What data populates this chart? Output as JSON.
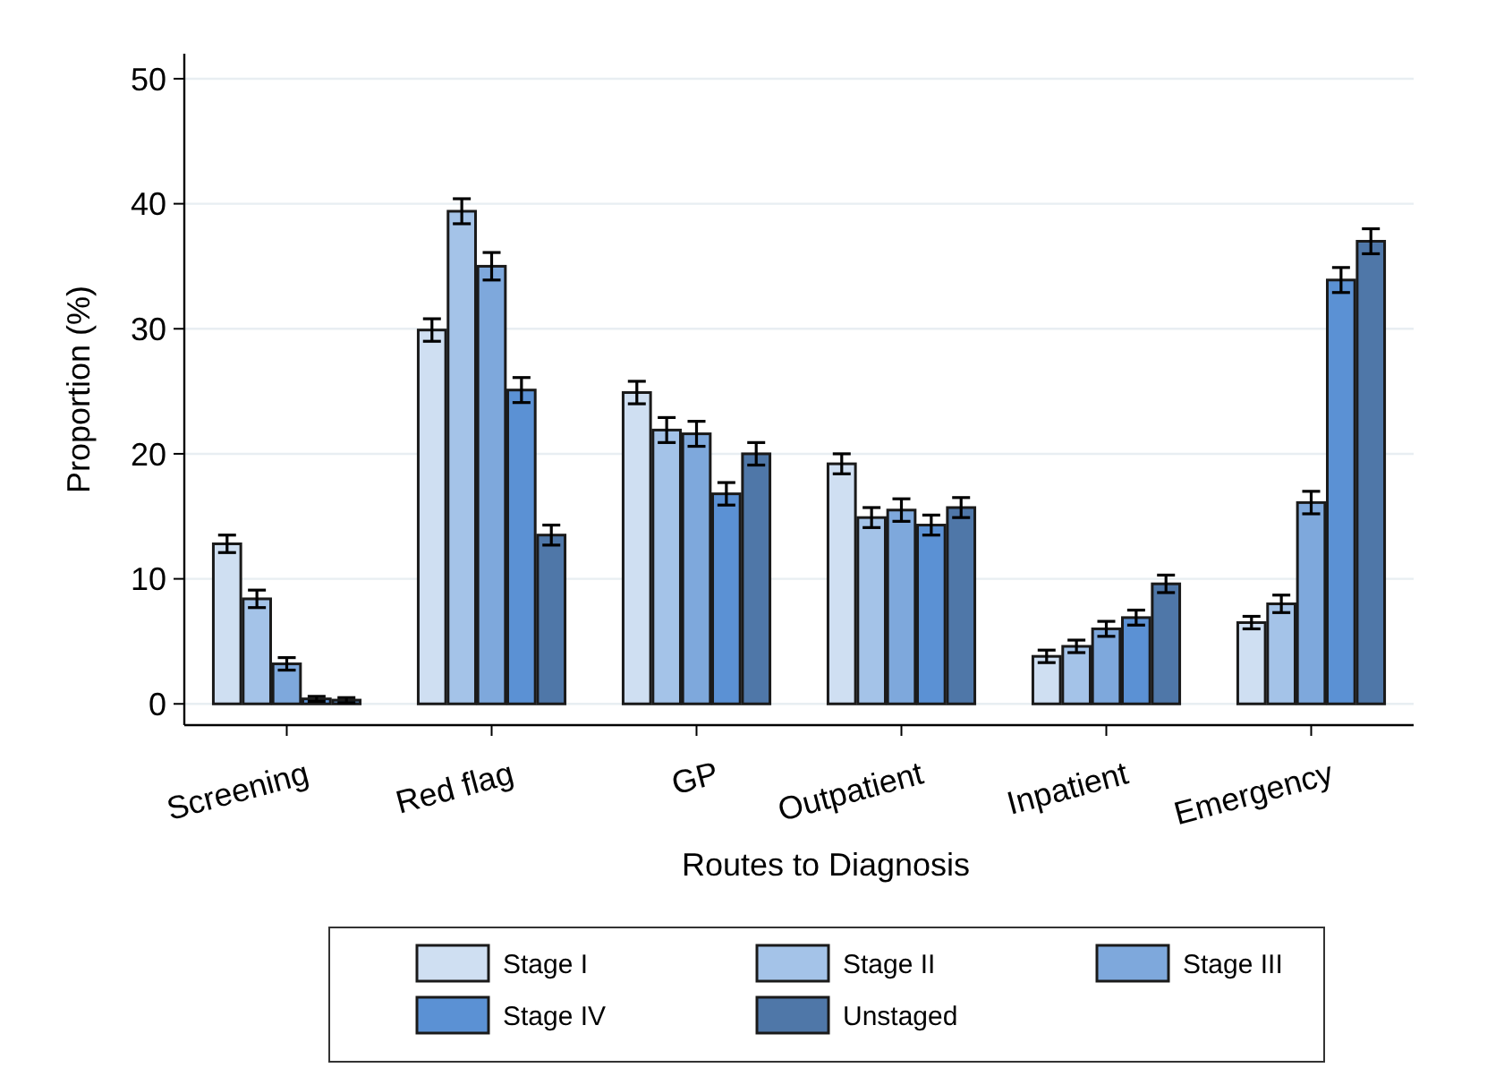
{
  "chart_data": {
    "type": "bar",
    "xlabel": "Routes to Diagnosis",
    "ylabel": "Proportion (%)",
    "categories": [
      "Screening",
      "Red flag",
      "GP",
      "Outpatient",
      "Inpatient",
      "Emergency"
    ],
    "series": [
      {
        "name": "Stage I",
        "color": "#cfdff2",
        "values": [
          12.8,
          29.9,
          24.9,
          19.2,
          3.8,
          6.5
        ],
        "errors": [
          0.7,
          0.9,
          0.9,
          0.8,
          0.5,
          0.5
        ]
      },
      {
        "name": "Stage II",
        "color": "#a4c3e8",
        "values": [
          8.4,
          39.4,
          21.9,
          14.9,
          4.6,
          8.0
        ],
        "errors": [
          0.7,
          1.0,
          1.0,
          0.8,
          0.5,
          0.7
        ]
      },
      {
        "name": "Stage III",
        "color": "#7ea8dc",
        "values": [
          3.2,
          35.0,
          21.6,
          15.5,
          6.0,
          16.1
        ],
        "errors": [
          0.5,
          1.1,
          1.0,
          0.9,
          0.6,
          0.9
        ]
      },
      {
        "name": "Stage IV",
        "color": "#5b91d4",
        "values": [
          0.4,
          25.1,
          16.8,
          14.3,
          6.9,
          33.9
        ],
        "errors": [
          0.2,
          1.0,
          0.9,
          0.8,
          0.6,
          1.0
        ]
      },
      {
        "name": "Unstaged",
        "color": "#4f77a8",
        "values": [
          0.3,
          13.5,
          20.0,
          15.7,
          9.6,
          37.0
        ],
        "errors": [
          0.2,
          0.8,
          0.9,
          0.8,
          0.7,
          1.0
        ]
      }
    ],
    "ylim": [
      -1.7,
      52
    ],
    "yticks": [
      0,
      10,
      20,
      30,
      40,
      50
    ],
    "grid": "y",
    "legend": "bottom"
  }
}
